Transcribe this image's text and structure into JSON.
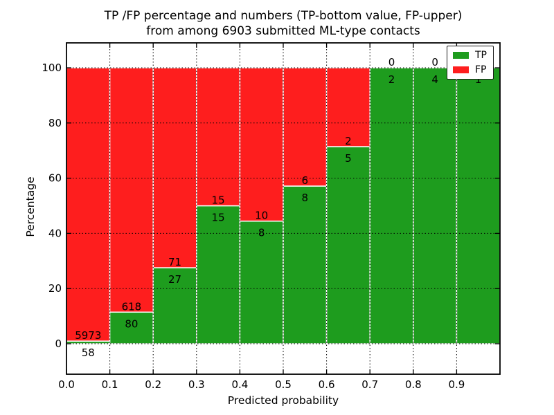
{
  "figure": {
    "title_line1": "TP /FP percentage and numbers (TP-bottom value, FP-upper)",
    "title_line2": "from among 6903 submitted ML-type contacts"
  },
  "chart_data": {
    "type": "bar",
    "stacked": true,
    "orientation": "vertical",
    "title": "TP /FP percentage and numbers (TP-bottom value, FP-upper)\nfrom among 6903 submitted ML-type contacts",
    "xlabel": "Predicted probability",
    "ylabel": "Percentage",
    "total_contacts": 6903,
    "bin_edges": [
      0.0,
      0.1,
      0.2,
      0.3,
      0.4,
      0.5,
      0.6,
      0.7,
      0.8,
      0.9,
      1.0
    ],
    "categories": [
      "0.0-0.1",
      "0.1-0.2",
      "0.2-0.3",
      "0.3-0.4",
      "0.4-0.5",
      "0.5-0.6",
      "0.6-0.7",
      "0.7-0.8",
      "0.8-0.9",
      "0.9-1.0"
    ],
    "series": [
      {
        "name": "TP",
        "color": "#1e9c1e",
        "position": "bottom",
        "counts": [
          58,
          80,
          27,
          15,
          8,
          8,
          5,
          2,
          4,
          1
        ]
      },
      {
        "name": "FP",
        "color": "#fe1e1e",
        "position": "top",
        "counts": [
          5973,
          618,
          71,
          15,
          10,
          6,
          2,
          0,
          0,
          0
        ]
      }
    ],
    "tp_percentages": [
      0.96,
      11.46,
      27.55,
      50.0,
      44.44,
      57.14,
      71.43,
      100.0,
      100.0,
      100.0
    ],
    "x_tick_labels": [
      "0.0",
      "0.1",
      "0.2",
      "0.3",
      "0.4",
      "0.5",
      "0.6",
      "0.7",
      "0.8",
      "0.9"
    ],
    "y_tick_values": [
      0,
      20,
      40,
      60,
      80,
      100
    ],
    "y_tick_labels": [
      "0",
      "20",
      "40",
      "60",
      "80",
      "100"
    ],
    "xlim": [
      0.0,
      1.0
    ],
    "ylim_percent": [
      -11,
      109
    ],
    "grid": {
      "visible": true,
      "style": "dotted",
      "color": "#000000",
      "on_top": true
    },
    "bar_edge_color": "#ffffff",
    "legend": {
      "position": "upper-right",
      "entries": [
        {
          "label": "TP",
          "color": "#1e9c1e"
        },
        {
          "label": "FP",
          "color": "#fe1e1e"
        }
      ]
    }
  }
}
